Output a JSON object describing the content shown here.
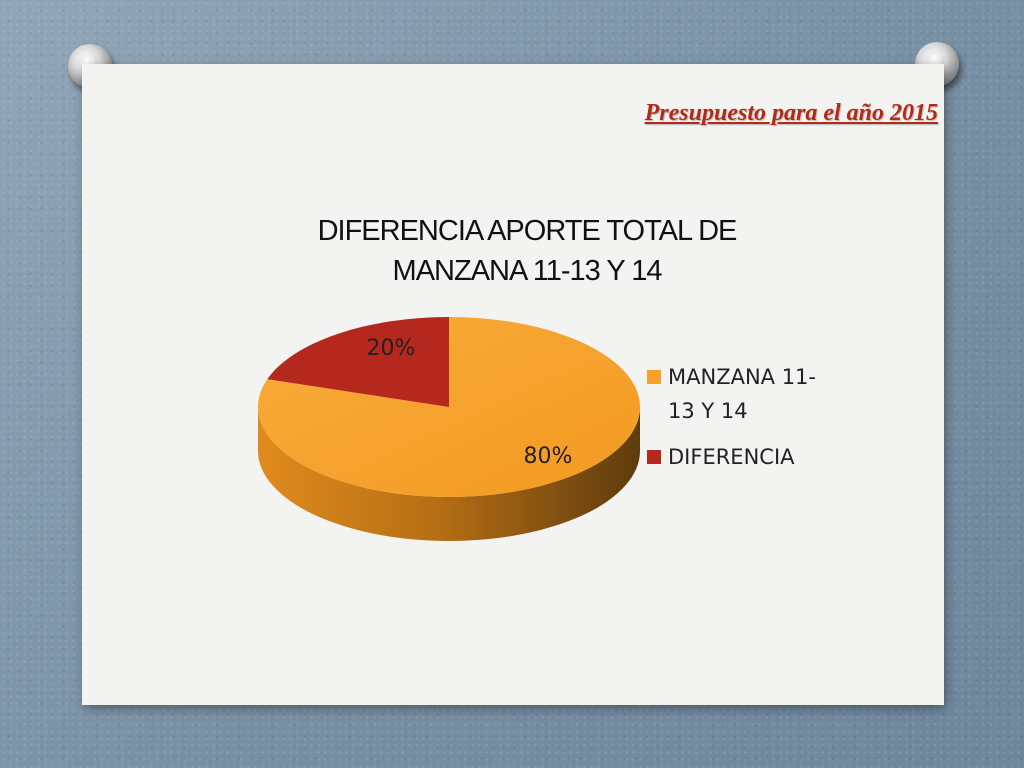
{
  "slide": {
    "heading": "Presupuesto para el año 2015"
  },
  "chart_data": {
    "type": "pie",
    "title_lines": [
      "DIFERENCIA APORTE TOTAL DE",
      "MANZANA 11-13 Y 14"
    ],
    "categories": [
      "MANZANA 11-13 Y 14",
      "DIFERENCIA"
    ],
    "values": [
      80,
      20
    ],
    "data_labels": [
      "80%",
      "20%"
    ],
    "legend_lines": [
      [
        "MANZANA 11-",
        "13 Y 14"
      ],
      [
        "DIFERENCIA"
      ]
    ],
    "legend_position": "right",
    "colors": [
      "#f7a12a",
      "#b4281e"
    ],
    "side_colors": [
      "#c77a16",
      "#7a1a12"
    ]
  }
}
